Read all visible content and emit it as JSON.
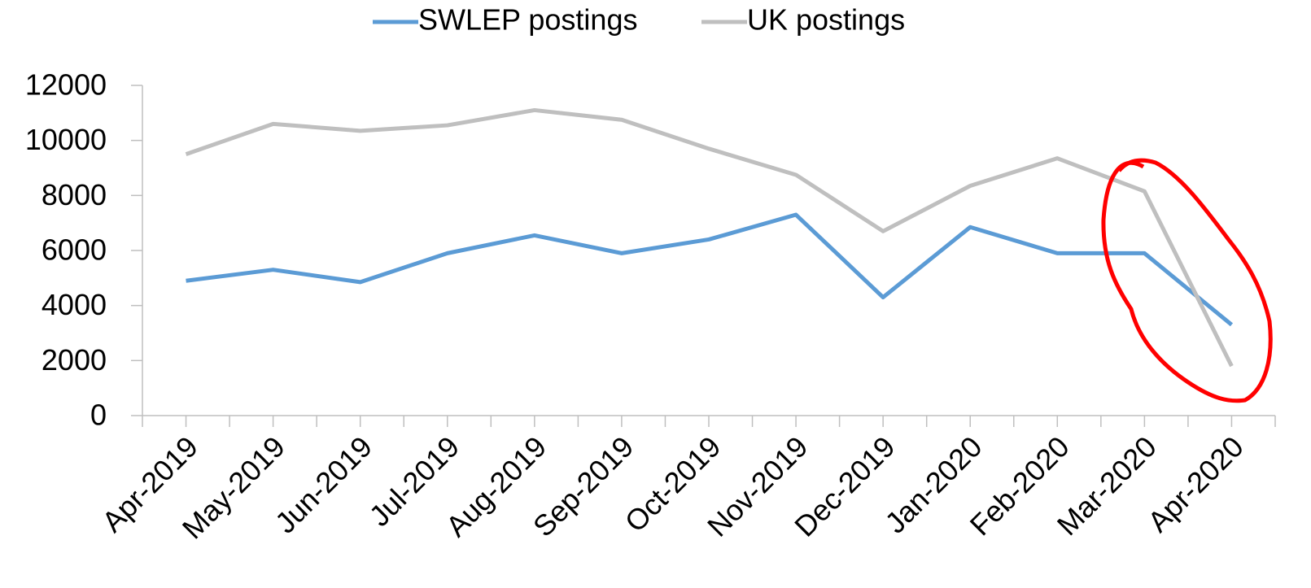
{
  "chart_data": {
    "type": "line",
    "categories": [
      "Apr-2019",
      "May-2019",
      "Jun-2019",
      "Jul-2019",
      "Aug-2019",
      "Sep-2019",
      "Oct-2019",
      "Nov-2019",
      "Dec-2019",
      "Jan-2020",
      "Feb-2020",
      "Mar-2020",
      "Apr-2020"
    ],
    "series": [
      {
        "name": "SWLEP postings",
        "color": "#5b9bd5",
        "values": [
          4900,
          5300,
          4850,
          5900,
          6550,
          5900,
          6400,
          7300,
          4300,
          6850,
          5900,
          5900,
          3300
        ]
      },
      {
        "name": "UK postings",
        "color": "#bfbfbf",
        "values": [
          9500,
          10600,
          10350,
          10550,
          11100,
          10750,
          9700,
          8750,
          6700,
          8350,
          9350,
          8150,
          1800
        ]
      }
    ],
    "ylim": [
      0,
      12000
    ],
    "yticks": [
      0,
      2000,
      4000,
      6000,
      8000,
      10000,
      12000
    ],
    "grid": false,
    "legend": "top"
  }
}
